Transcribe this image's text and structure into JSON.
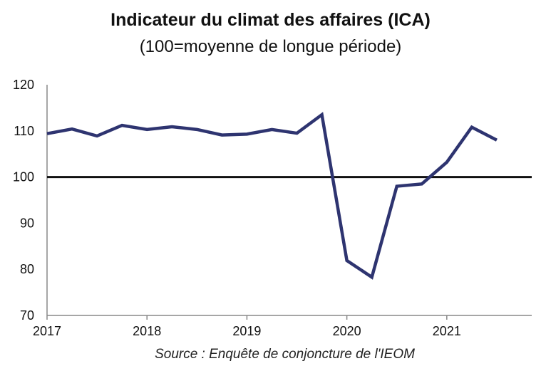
{
  "chart_data": {
    "type": "line",
    "title": "Indicateur du climat des affaires (ICA)",
    "subtitle": "(100=moyenne de longue période)",
    "source": "Source : Enquête de conjoncture de l'IEOM",
    "x": [
      2017.0,
      2017.25,
      2017.5,
      2017.75,
      2018.0,
      2018.25,
      2018.5,
      2018.75,
      2019.0,
      2019.25,
      2019.5,
      2019.75,
      2020.0,
      2020.25,
      2020.5,
      2020.75,
      2021.0,
      2021.25,
      2021.5
    ],
    "series": [
      {
        "values": [
          109.4,
          110.4,
          108.9,
          111.2,
          110.3,
          110.9,
          110.3,
          109.1,
          109.3,
          110.3,
          109.5,
          113.5,
          81.9,
          78.3,
          98.0,
          98.5,
          103.2,
          110.8,
          108.0
        ],
        "color": "#2e3470"
      }
    ],
    "reference_line": {
      "y": 100,
      "color": "#111111"
    },
    "xticks": [
      "2017",
      "2018",
      "2019",
      "2020",
      "2021"
    ],
    "yticks": [
      70,
      80,
      90,
      100,
      110,
      120
    ],
    "ylim": [
      70,
      120
    ],
    "xlim": [
      2017,
      2021.85
    ],
    "grid": false
  }
}
